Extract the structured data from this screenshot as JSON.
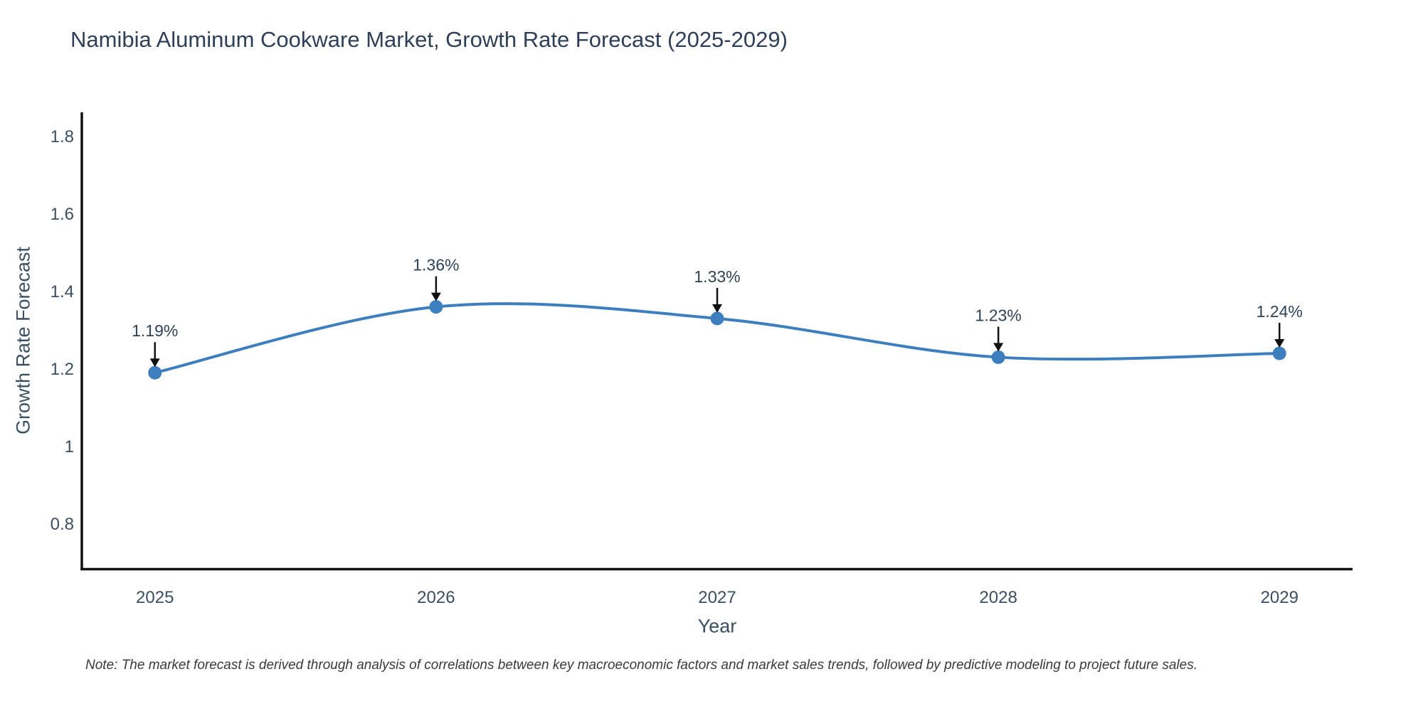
{
  "title": "Namibia Aluminum Cookware Market, Growth Rate Forecast (2025-2029)",
  "note": "Note: The market forecast is derived through analysis of correlations between key macroeconomic factors and market sales trends, followed by predictive modeling to project future sales.",
  "chart_data": {
    "type": "line",
    "title": "Namibia Aluminum Cookware Market, Growth Rate Forecast (2025-2029)",
    "xlabel": "Year",
    "ylabel": "Growth Rate Forecast",
    "x": [
      2025,
      2026,
      2027,
      2028,
      2029
    ],
    "values": [
      1.19,
      1.36,
      1.33,
      1.23,
      1.24
    ],
    "point_labels": [
      "1.19%",
      "1.36%",
      "1.33%",
      "1.23%",
      "1.24%"
    ],
    "xticks": [
      "2025",
      "2026",
      "2027",
      "2028",
      "2029"
    ],
    "yticks": [
      0.8,
      1,
      1.2,
      1.4,
      1.6,
      1.8
    ],
    "xlim": [
      2024.74,
      2029.26
    ],
    "ylim": [
      0.684,
      1.862
    ],
    "grid": false,
    "legend": false,
    "curve": "spline",
    "line_color": "#3d7ebf",
    "marker_color": "#3d7ebf",
    "arrow_color": "#111111",
    "spine_color": "#111111",
    "tick_text_color": "#3b4f63",
    "annotation_text_color": "#2f4358",
    "background_color": "#ffffff"
  }
}
